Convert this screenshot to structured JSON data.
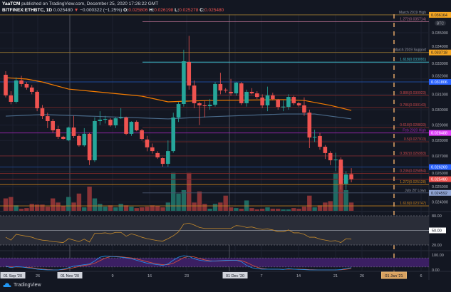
{
  "header": {
    "author": "YaaTCM",
    "published": "published on TradingView.com, December 25, 2020 17:26:22 GMT",
    "symbol": "BITFINEX:ETHBTC, 1D",
    "last": "0.025480",
    "change": "−0.000322 (−1.25%)",
    "o_label": "O:",
    "o": "0.025806",
    "h_label": "H:",
    "h": "0.026198",
    "l_label": "L:",
    "l": "0.025278",
    "c_label": "C:",
    "c": "0.025480"
  },
  "footer": {
    "brand": "TradingView"
  },
  "colors": {
    "bg": "#131722",
    "up": "#26a69a",
    "down": "#ef5350",
    "ma_slow": "#f57c00",
    "ma_fast": "#4a6a8a",
    "rsi": "#c58a2c",
    "stoch_k": "#2196f3",
    "stoch_d": "#e0533d",
    "rsi_band": "#2a2d38",
    "stoch_band": "#3b1f63",
    "jan_marker": "#e3a566"
  },
  "price_axis": {
    "ticks": [
      "0.035000",
      "0.034000",
      "0.033000",
      "0.032000",
      "0.031000",
      "0.030000",
      "0.029000",
      "0.028000",
      "0.027000",
      "0.026000",
      "0.025000",
      "0.024000"
    ],
    "currency_badge": "BTC"
  },
  "levels": [
    {
      "price": 0.036164,
      "tag": "0.036164",
      "label": "March 2019 High",
      "color": "#8a6d2f",
      "tagcolor": "#f5a623"
    },
    {
      "price": 0.035714,
      "label": "1.272(0.035714)",
      "color": "#b06a8a"
    },
    {
      "price": 0.033718,
      "tag": "0.033718",
      "label": "March 2019 Support",
      "color": "#8a6d2f",
      "tagcolor": "#f5a623"
    },
    {
      "price": 0.033091,
      "label": "1.618(0.033091)",
      "color": "#3fb8c8"
    },
    {
      "price": 0.031806,
      "tag": "0.031806",
      "color": "#1e4a9a",
      "tagcolor": "#2962ff"
    },
    {
      "price": 0.030923,
      "label": "0.886(0.030923)",
      "color": "#7a2a2a"
    },
    {
      "price": 0.030143,
      "label": "0.786(0.030143)",
      "color": "#7a2a2a"
    },
    {
      "price": 0.028833,
      "label": "0.618(0.028833)",
      "color": "#7a2a2a"
    },
    {
      "price": 0.028488,
      "tag": "0.028488",
      "label": "Feb 2020 High",
      "color": "#9c27b0",
      "tagcolor": "#e040fb"
    },
    {
      "price": 0.027913,
      "label": "0.5(0.027913)",
      "color": "#7a2a2a"
    },
    {
      "price": 0.026993,
      "label": "0.382(0.026993)",
      "color": "#7a2a2a"
    },
    {
      "price": 0.026269,
      "tag": "0.026269",
      "color": "#1e4a9a",
      "tagcolor": "#2962ff"
    },
    {
      "price": 0.025854,
      "label": "0.236(0.025854)",
      "color": "#7a2a2a"
    },
    {
      "price": 0.02548,
      "tag": "0.025480",
      "color": "#7a2a2a",
      "tagcolor": "#ef5350"
    },
    {
      "price": 0.025128,
      "label": "1.272(0.025128)",
      "color": "#c57f1c"
    },
    {
      "price": 0.024592,
      "tag": "0.024592",
      "label": "July 20' Lows",
      "color": "#4a5570",
      "tagcolor": "#90a4d4"
    },
    {
      "price": 0.023747,
      "label": "1.618(0.023747)",
      "color": "#c57f1c"
    }
  ],
  "time_axis": {
    "labels": [
      "01 Sep '20",
      "26",
      "01 Nov '20",
      "9",
      "16",
      "23",
      "01 Dec '20",
      "7",
      "14",
      "21",
      "26",
      "01 Jan '21",
      "6"
    ]
  },
  "rsi_axis": {
    "ticks": [
      "80.00",
      "50.00",
      "20.00"
    ]
  },
  "stoch_axis": {
    "ticks": [
      "100.00",
      "0.00"
    ]
  },
  "chart_data": {
    "type": "candlestick",
    "symbol": "BITFINEX:ETHBTC",
    "interval": "1D",
    "ylim": [
      0.0235,
      0.0365
    ],
    "ohlc": [
      [
        0.03227,
        0.0325,
        0.0308,
        0.03093
      ],
      [
        0.03093,
        0.0312,
        0.03035,
        0.03051
      ],
      [
        0.03051,
        0.0321,
        0.0304,
        0.0319
      ],
      [
        0.0319,
        0.0322,
        0.0315,
        0.03167
      ],
      [
        0.03167,
        0.0318,
        0.0313,
        0.03144
      ],
      [
        0.03144,
        0.0316,
        0.031,
        0.03116
      ],
      [
        0.03116,
        0.03125,
        0.0299,
        0.03009
      ],
      [
        0.03009,
        0.0303,
        0.0294,
        0.02958
      ],
      [
        0.02958,
        0.0298,
        0.0288,
        0.02926
      ],
      [
        0.02926,
        0.0294,
        0.0285,
        0.02866
      ],
      [
        0.02875,
        0.02895,
        0.0281,
        0.02824
      ],
      [
        0.02824,
        0.0283,
        0.02805,
        0.0281
      ],
      [
        0.02801,
        0.0289,
        0.02795,
        0.02884
      ],
      [
        0.02884,
        0.0296,
        0.02815,
        0.02829
      ],
      [
        0.02829,
        0.0284,
        0.0276,
        0.02768
      ],
      [
        0.02768,
        0.0288,
        0.0276,
        0.02843
      ],
      [
        0.02843,
        0.0285,
        0.0264,
        0.02671
      ],
      [
        0.02671,
        0.0295,
        0.0266,
        0.02926
      ],
      [
        0.02926,
        0.0299,
        0.029,
        0.02935
      ],
      [
        0.02935,
        0.0296,
        0.0291,
        0.0294
      ],
      [
        0.02935,
        0.02945,
        0.0289,
        0.02898
      ],
      [
        0.02898,
        0.0295,
        0.0288,
        0.02944
      ],
      [
        0.02944,
        0.0301,
        0.0294,
        0.02949
      ],
      [
        0.02949,
        0.02955,
        0.02835,
        0.02843
      ],
      [
        0.02843,
        0.02925,
        0.0283,
        0.02921
      ],
      [
        0.02921,
        0.0293,
        0.0286,
        0.02866
      ],
      [
        0.02866,
        0.02875,
        0.028,
        0.0281
      ],
      [
        0.02806,
        0.0283,
        0.0273,
        0.02755
      ],
      [
        0.02755,
        0.0278,
        0.02715,
        0.02731
      ],
      [
        0.02718,
        0.0273,
        0.0268,
        0.0269
      ],
      [
        0.02685,
        0.0269,
        0.0263,
        0.02648
      ],
      [
        0.02648,
        0.028,
        0.0263,
        0.02731
      ],
      [
        0.02731,
        0.0298,
        0.0272,
        0.02949
      ],
      [
        0.02949,
        0.0305,
        0.0292,
        0.03037
      ],
      [
        0.03037,
        0.0339,
        0.0302,
        0.03315
      ],
      [
        0.0331,
        0.0348,
        0.0313,
        0.03157
      ],
      [
        0.03157,
        0.0319,
        0.0301,
        0.03042
      ],
      [
        0.03042,
        0.0305,
        0.029,
        0.03028
      ],
      [
        0.03028,
        0.0306,
        0.0295,
        0.03023
      ],
      [
        0.03023,
        0.0307,
        0.03,
        0.03032
      ],
      [
        0.03032,
        0.0318,
        0.0302,
        0.03167
      ],
      [
        0.03167,
        0.0324,
        0.031,
        0.03125
      ],
      [
        0.0313,
        0.0314,
        0.0311,
        0.03125
      ],
      [
        0.03116,
        0.032,
        0.0309,
        0.03106
      ],
      [
        0.03106,
        0.0318,
        0.0309,
        0.03176
      ],
      [
        0.03171,
        0.0318,
        0.0303,
        0.03042
      ],
      [
        0.03042,
        0.0313,
        0.0302,
        0.03116
      ],
      [
        0.03116,
        0.0314,
        0.031,
        0.03106
      ],
      [
        0.03106,
        0.0312,
        0.0307,
        0.03083
      ],
      [
        0.03079,
        0.031,
        0.0301,
        0.03028
      ],
      [
        0.03028,
        0.0315,
        0.0299,
        0.03093
      ],
      [
        0.03093,
        0.0311,
        0.0306,
        0.03069
      ],
      [
        0.03065,
        0.0307,
        0.03,
        0.03018
      ],
      [
        0.03018,
        0.0306,
        0.0299,
        0.0302
      ],
      [
        0.03018,
        0.031,
        0.03,
        0.03083
      ],
      [
        0.03083,
        0.0309,
        0.0303,
        0.03042
      ],
      [
        0.03042,
        0.0305,
        0.0302,
        0.03028
      ],
      [
        0.03028,
        0.0308,
        0.0296,
        0.02981
      ],
      [
        0.02981,
        0.03,
        0.0275,
        0.02819
      ],
      [
        0.02819,
        0.0287,
        0.0279,
        0.02824
      ],
      [
        0.02829,
        0.0285,
        0.0274,
        0.02759
      ],
      [
        0.02759,
        0.0277,
        0.0268,
        0.02718
      ],
      [
        0.02718,
        0.0273,
        0.0264,
        0.02671
      ],
      [
        0.02671,
        0.0272,
        0.026,
        0.02676
      ],
      [
        0.02676,
        0.0269,
        0.0248,
        0.02518
      ],
      [
        0.02518,
        0.026,
        0.0248,
        0.02579
      ],
      [
        0.025806,
        0.026198,
        0.025278,
        0.02548
      ]
    ],
    "volume": [
      18,
      20,
      8,
      3,
      4,
      10,
      9,
      9,
      6,
      18,
      12,
      7,
      20,
      12,
      25,
      5,
      35,
      18,
      10,
      6,
      8,
      5,
      10,
      8,
      6,
      4,
      5,
      6,
      8,
      7,
      5,
      12,
      55,
      25,
      30,
      55,
      12,
      28,
      10,
      3,
      10,
      12,
      22,
      5,
      4,
      3,
      15,
      4,
      2,
      3,
      5,
      3,
      3,
      2,
      2,
      4,
      3,
      6,
      22,
      5,
      8,
      12,
      14,
      55,
      65,
      30,
      12
    ],
    "ma_slow": [
      [
        1,
        0.03208
      ],
      [
        5,
        0.03199
      ],
      [
        8,
        0.0318
      ],
      [
        13,
        0.03134
      ],
      [
        20,
        0.03111
      ],
      [
        27,
        0.03088
      ],
      [
        32,
        0.03051
      ],
      [
        35,
        0.03055
      ],
      [
        40,
        0.0306
      ],
      [
        54,
        0.03065
      ],
      [
        58,
        0.0306
      ],
      [
        63,
        0.03028
      ],
      [
        67,
        0.02995
      ]
    ],
    "ma_fast": [
      [
        1,
        0.02958
      ],
      [
        8,
        0.02968
      ],
      [
        13,
        0.02963
      ],
      [
        32,
        0.0294
      ],
      [
        40,
        0.02954
      ],
      [
        54,
        0.02972
      ],
      [
        60,
        0.02972
      ],
      [
        67,
        0.0294
      ]
    ],
    "rsi": {
      "values": [
        36,
        30,
        42,
        40,
        38,
        36,
        32,
        30,
        29,
        27,
        26,
        25,
        33,
        30,
        27,
        32,
        26,
        44,
        44,
        45,
        43,
        46,
        46,
        38,
        43,
        40,
        36,
        33,
        31,
        29,
        28,
        33,
        39,
        47,
        63,
        65,
        61,
        56,
        54,
        54,
        54,
        54,
        54,
        54,
        60,
        59,
        56,
        57,
        54,
        52,
        53,
        51,
        47,
        47,
        51,
        45,
        45,
        42,
        36,
        36,
        32,
        30,
        28,
        29,
        25,
        33,
        32
      ],
      "ylim": [
        0,
        100
      ],
      "bands": [
        20,
        50,
        80
      ]
    },
    "stoch_rsi": {
      "k": [
        25,
        15,
        22,
        20,
        15,
        10,
        5,
        2,
        0,
        0,
        0,
        5,
        15,
        25,
        30,
        35,
        40,
        60,
        85,
        92,
        90,
        88,
        85,
        80,
        75,
        65,
        55,
        45,
        40,
        35,
        30,
        40,
        65,
        85,
        95,
        90,
        75,
        65,
        60,
        58,
        60,
        62,
        64,
        65,
        65,
        55,
        30,
        15,
        8,
        5,
        5,
        5,
        5,
        3,
        8,
        5,
        3,
        2,
        0,
        0,
        0,
        0,
        0,
        0,
        2,
        10,
        15
      ],
      "d": [
        22,
        20,
        20,
        19,
        18,
        15,
        10,
        6,
        3,
        1,
        0,
        2,
        7,
        15,
        23,
        30,
        35,
        45,
        62,
        79,
        89,
        90,
        88,
        84,
        80,
        73,
        65,
        55,
        47,
        40,
        35,
        35,
        45,
        63,
        82,
        90,
        87,
        77,
        67,
        61,
        59,
        60,
        62,
        64,
        65,
        62,
        50,
        33,
        18,
        9,
        6,
        5,
        5,
        4,
        5,
        5,
        5,
        4,
        2,
        1,
        0,
        0,
        0,
        0,
        1,
        4,
        9
      ],
      "ylim": [
        0,
        100
      ],
      "bands": [
        20,
        80
      ]
    }
  }
}
